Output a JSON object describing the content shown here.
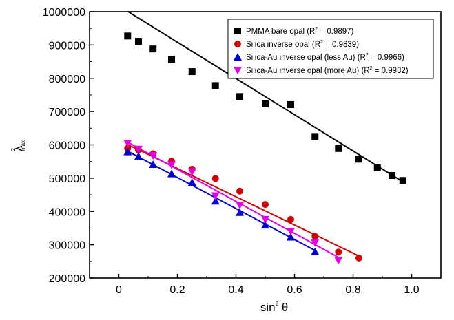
{
  "chart_data": {
    "type": "scatter",
    "title": "",
    "xlabel": "sin",
    "xlabel_sup": "2",
    "xlabel_tail": " θ",
    "ylabel": "λ",
    "ylabel_sup": "2",
    "ylabel_sub": "max",
    "xlim": [
      -0.1,
      1.1
    ],
    "ylim": [
      200000,
      1000000
    ],
    "grid": false,
    "legend_position": "top-right",
    "x_ticks": [
      {
        "value": 0,
        "label": "0"
      },
      {
        "value": 0.2,
        "label": "0.2"
      },
      {
        "value": 0.4,
        "label": "0.4"
      },
      {
        "value": 0.6,
        "label": "0.6"
      },
      {
        "value": 0.8,
        "label": "0.8"
      },
      {
        "value": 1.0,
        "label": "1.0"
      }
    ],
    "y_ticks": [
      {
        "value": 200000,
        "label": "200000"
      },
      {
        "value": 300000,
        "label": "300000"
      },
      {
        "value": 400000,
        "label": "400000"
      },
      {
        "value": 500000,
        "label": "500000"
      },
      {
        "value": 600000,
        "label": "600000"
      },
      {
        "value": 700000,
        "label": "700000"
      },
      {
        "value": 800000,
        "label": "800000"
      },
      {
        "value": 900000,
        "label": "900000"
      },
      {
        "value": 1000000,
        "label": "1000000"
      }
    ],
    "series": [
      {
        "name": "PMMA bare opal (R",
        "name_sup": "2",
        "name_tail": " = 0.9897)",
        "marker": "square",
        "color": "#000000",
        "points": [
          [
            0.03,
            927000
          ],
          [
            0.067,
            911000
          ],
          [
            0.117,
            888000
          ],
          [
            0.18,
            857000
          ],
          [
            0.25,
            820000
          ],
          [
            0.33,
            778000
          ],
          [
            0.413,
            745000
          ],
          [
            0.5,
            723000
          ],
          [
            0.587,
            721000
          ],
          [
            0.67,
            625000
          ],
          [
            0.75,
            589000
          ],
          [
            0.82,
            557000
          ],
          [
            0.883,
            531000
          ],
          [
            0.933,
            508000
          ],
          [
            0.97,
            493000
          ]
        ],
        "fit": [
          [
            0.03,
            1001000
          ],
          [
            0.97,
            489000
          ]
        ]
      },
      {
        "name": "Silica inverse opal (R",
        "name_sup": "2",
        "name_tail": " = 0.9839)",
        "marker": "circle",
        "color": "#cc0000",
        "points": [
          [
            0.03,
            590000
          ],
          [
            0.067,
            585000
          ],
          [
            0.117,
            573000
          ],
          [
            0.18,
            551000
          ],
          [
            0.25,
            527000
          ],
          [
            0.33,
            499000
          ],
          [
            0.413,
            461000
          ],
          [
            0.5,
            421000
          ],
          [
            0.587,
            376000
          ],
          [
            0.67,
            325000
          ],
          [
            0.75,
            278000
          ],
          [
            0.82,
            260000
          ]
        ],
        "fit": [
          [
            0.03,
            601000
          ],
          [
            0.82,
            266000
          ]
        ]
      },
      {
        "name": "Silica-Au inverse opal (less Au) (R",
        "name_sup": "2",
        "name_tail": " = 0.9966)",
        "marker": "triangle-up",
        "color": "#0000cc",
        "points": [
          [
            0.03,
            579000
          ],
          [
            0.067,
            566000
          ],
          [
            0.117,
            541000
          ],
          [
            0.18,
            513000
          ],
          [
            0.25,
            487000
          ],
          [
            0.33,
            431000
          ],
          [
            0.413,
            397000
          ],
          [
            0.5,
            359000
          ],
          [
            0.587,
            323000
          ],
          [
            0.67,
            279000
          ]
        ],
        "fit": [
          [
            0.03,
            581000
          ],
          [
            0.67,
            283000
          ]
        ]
      },
      {
        "name": "Silica-Au inverse opal (more Au) (R",
        "name_sup": "2",
        "name_tail": " = 0.9932)",
        "marker": "triangle-down",
        "color": "#e000e0",
        "points": [
          [
            0.03,
            605000
          ],
          [
            0.067,
            587000
          ],
          [
            0.117,
            568000
          ],
          [
            0.18,
            540000
          ],
          [
            0.25,
            519000
          ],
          [
            0.33,
            447000
          ],
          [
            0.413,
            419000
          ],
          [
            0.5,
            376000
          ],
          [
            0.587,
            340000
          ],
          [
            0.67,
            306000
          ],
          [
            0.75,
            253000
          ]
        ],
        "fit": [
          [
            0.03,
            608000
          ],
          [
            0.75,
            262000
          ]
        ]
      }
    ]
  }
}
